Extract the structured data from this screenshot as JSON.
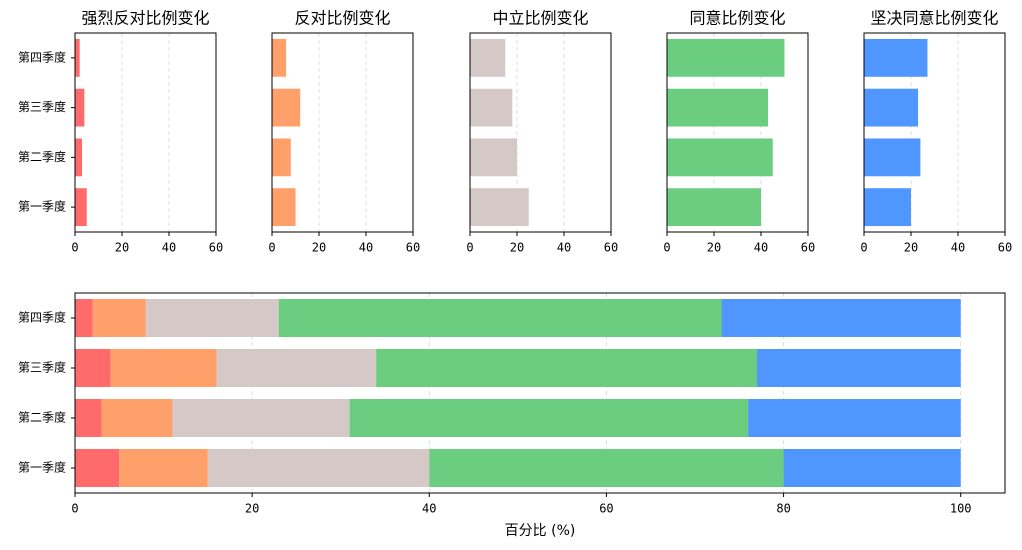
{
  "chart_data": [
    {
      "type": "hbar",
      "title": "强烈反对比例变化",
      "categories": [
        "第一季度",
        "第二季度",
        "第三季度",
        "第四季度"
      ],
      "values": [
        5,
        3,
        4,
        2
      ],
      "color": "#ff6b6b",
      "xlim": [
        0,
        60
      ],
      "xticks": [
        0,
        20,
        40,
        60
      ],
      "grid": true
    },
    {
      "type": "hbar",
      "title": "反对比例变化",
      "values": [
        10,
        8,
        12,
        6
      ],
      "color": "#ffa06b",
      "xlim": [
        0,
        60
      ],
      "xticks": [
        0,
        20,
        40,
        60
      ],
      "grid": true
    },
    {
      "type": "hbar",
      "title": "中立比例变化",
      "values": [
        25,
        20,
        18,
        15
      ],
      "color": "#d5c9c8",
      "xlim": [
        0,
        60
      ],
      "xticks": [
        0,
        20,
        40,
        60
      ],
      "grid": true
    },
    {
      "type": "hbar",
      "title": "同意比例变化",
      "values": [
        40,
        45,
        43,
        50
      ],
      "color": "#6bcd80",
      "xlim": [
        0,
        60
      ],
      "xticks": [
        0,
        20,
        40,
        60
      ],
      "grid": true
    },
    {
      "type": "hbar",
      "title": "坚决同意比例变化",
      "values": [
        20,
        24,
        23,
        27
      ],
      "color": "#4f96ff",
      "xlim": [
        0,
        60
      ],
      "xticks": [
        0,
        20,
        40,
        60
      ],
      "grid": true
    },
    {
      "type": "stacked_hbar",
      "xlabel": "百分比 (%)",
      "categories": [
        "第一季度",
        "第二季度",
        "第三季度",
        "第四季度"
      ],
      "series": [
        {
          "color": "#ff6b6b",
          "values": [
            5,
            3,
            4,
            2
          ]
        },
        {
          "color": "#ffa06b",
          "values": [
            10,
            8,
            12,
            6
          ]
        },
        {
          "color": "#d5c9c8",
          "values": [
            25,
            20,
            18,
            15
          ]
        },
        {
          "color": "#6bcd80",
          "values": [
            40,
            45,
            43,
            50
          ]
        },
        {
          "color": "#4f96ff",
          "values": [
            20,
            24,
            23,
            27
          ]
        }
      ],
      "xlim": [
        0,
        105
      ],
      "xticks": [
        0,
        20,
        40,
        60,
        80,
        100
      ],
      "grid": true
    }
  ]
}
